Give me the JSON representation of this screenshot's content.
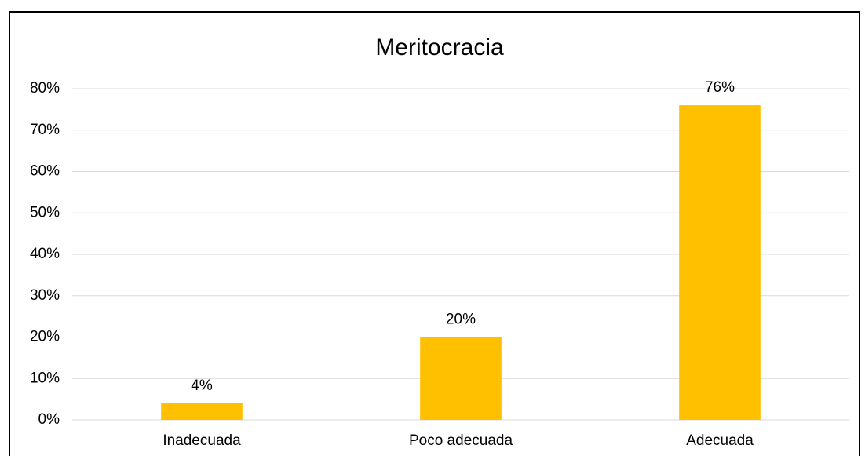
{
  "chart_data": {
    "type": "bar",
    "title": "Meritocracia",
    "categories": [
      "Inadecuada",
      "Poco adecuada",
      "Adecuada"
    ],
    "values": [
      4,
      20,
      76
    ],
    "value_labels": [
      "4%",
      "20%",
      "76%"
    ],
    "color": "#ffc000",
    "ylim": [
      0,
      80
    ],
    "yticks": [
      {
        "value": 0,
        "label": "0%"
      },
      {
        "value": 10,
        "label": "10%"
      },
      {
        "value": 20,
        "label": "20%"
      },
      {
        "value": 30,
        "label": "30%"
      },
      {
        "value": 40,
        "label": "40%"
      },
      {
        "value": 50,
        "label": "50%"
      },
      {
        "value": 60,
        "label": "60%"
      },
      {
        "value": 70,
        "label": "70%"
      },
      {
        "value": 80,
        "label": "80%"
      }
    ],
    "grid": true
  }
}
